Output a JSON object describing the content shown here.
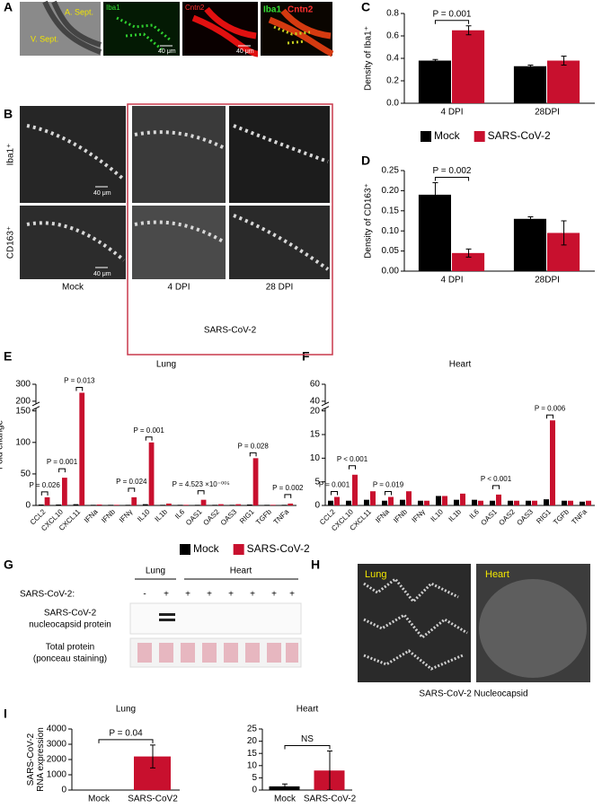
{
  "panel_labels": [
    "A",
    "B",
    "C",
    "D",
    "E",
    "F",
    "G",
    "H",
    "I"
  ],
  "panel_a": {
    "annotations": [
      "A. Sept.",
      "V. Sept."
    ],
    "channels": [
      "Iba1",
      "Cntn2"
    ],
    "scale_bars": [
      "40 μm",
      "40 μm"
    ]
  },
  "panel_b": {
    "rows": [
      "Iba1⁺",
      "CD163⁺"
    ],
    "scale_bars": [
      "40 μm",
      "40 μm"
    ],
    "columns": [
      "Mock",
      "4 DPI",
      "28 DPI"
    ],
    "group": "SARS-CoV-2"
  },
  "panel_g": {
    "tissues": [
      "Lung",
      "Heart"
    ],
    "row_header": "SARS-CoV-2:",
    "lanes": [
      "-",
      "+",
      "+",
      "+",
      "+",
      "+",
      "+",
      "+"
    ],
    "rows": [
      [
        "SARS-CoV-2",
        "nucleocapsid protein"
      ],
      [
        "Total protein",
        "(ponceau staining)"
      ]
    ]
  },
  "panel_h": {
    "images": [
      "Lung",
      "Heart"
    ],
    "caption": "SARS-CoV-2 Nucleocapsid"
  },
  "chart_data": [
    {
      "type": "bar",
      "ylabel": "Density of Iba1⁺",
      "categories": [
        "4 DPI",
        "28DPI"
      ],
      "series": [
        {
          "color": "#000000",
          "values": [
            0.38,
            0.33
          ],
          "errors": [
            0.01,
            0.01
          ]
        },
        {
          "color": "#c8102e",
          "values": [
            0.65,
            0.38
          ],
          "errors": [
            0.04,
            0.04
          ]
        }
      ],
      "ylim": [
        0,
        0.8
      ],
      "yticks": [
        {
          "value": 0,
          "label": "0.0"
        },
        0.2,
        0.4,
        0.6,
        0.8
      ],
      "annotations": [
        {
          "text": "P = 0.001",
          "category": "4 DPI"
        }
      ]
    },
    {
      "type": "bar",
      "ylabel": "Density of CD163⁺",
      "categories": [
        "4 DPI",
        "28DPI"
      ],
      "series": [
        {
          "name": "Mock",
          "color": "#000000",
          "values": [
            0.19,
            0.13
          ],
          "errors": [
            0.03,
            0.005
          ]
        },
        {
          "name": "SARS-CoV-2",
          "color": "#c8102e",
          "values": [
            0.045,
            0.095
          ],
          "errors": [
            0.01,
            0.03
          ]
        }
      ],
      "ylim": [
        0,
        0.25
      ],
      "yticks": [
        {
          "value": 0,
          "label": "0.00"
        },
        0.05,
        {
          "value": 0.1,
          "label": "0.10"
        },
        0.15,
        {
          "value": 0.2,
          "label": "0.20"
        },
        0.25
      ],
      "annotations": [
        {
          "text": "P = 0.002",
          "category": "4 DPI"
        }
      ]
    },
    {
      "type": "bar",
      "title": "Lung",
      "ylabel": "Fold change",
      "categories": [
        "CCL2",
        "CXCL10",
        "CXCL11",
        "IFNa",
        "IFNb",
        "IFNγ",
        "IL10",
        "IL1b",
        "IL6",
        "OAS1",
        "OAS2",
        "OAS3",
        "RIG1",
        "TGFb",
        "TNFa"
      ],
      "series": [
        {
          "name": "Mock",
          "color": "#000000",
          "values": [
            1.5,
            1.5,
            2,
            1,
            1,
            1,
            2,
            1,
            1,
            1,
            1,
            1,
            1.5,
            1,
            1
          ]
        },
        {
          "name": "SARS-CoV-2",
          "color": "#c8102e",
          "values": [
            13,
            44,
            250,
            1.5,
            1,
            13,
            100,
            3,
            1,
            9,
            2,
            2,
            75,
            1,
            3
          ]
        }
      ],
      "ylim": [
        0,
        300
      ],
      "ybreak": [
        150,
        200
      ],
      "yticks": [
        0,
        50,
        100,
        150,
        200,
        300
      ],
      "annotations": [
        {
          "text": "P = 0.026",
          "category": "CCL2"
        },
        {
          "text": "P = 0.001",
          "category": "CXCL10"
        },
        {
          "text": "P = 0.013",
          "category": "CXCL11"
        },
        {
          "text": "P = 0.024",
          "category": "IFNγ"
        },
        {
          "text": "P = 0.001",
          "category": "IL10"
        },
        {
          "text": "P = 4.523 ×10⁻⁰⁰⁵",
          "category": "OAS1"
        },
        {
          "text": "P = 0.028",
          "category": "RIG1"
        },
        {
          "text": "P = 0.002",
          "category": "TNFa"
        }
      ]
    },
    {
      "type": "bar",
      "title": "Heart",
      "categories": [
        "CCL2",
        "CXCL10",
        "CXCL11",
        "IFNa",
        "IFNb",
        "IFNγ",
        "IL10",
        "IL1b",
        "IL6",
        "OAS1",
        "OAS2",
        "OAS3",
        "RIG1",
        "TGFb",
        "TNFa"
      ],
      "series": [
        {
          "color": "#000000",
          "values": [
            1,
            1,
            1.2,
            1,
            1.2,
            1,
            2,
            1.2,
            1.2,
            1,
            1,
            1,
            1.3,
            1,
            0.8
          ]
        },
        {
          "color": "#c8102e",
          "values": [
            1.8,
            6.5,
            3,
            1.8,
            3,
            1,
            2,
            2.5,
            1,
            2.3,
            1,
            1,
            18,
            1,
            1
          ]
        }
      ],
      "ylim": [
        0,
        60
      ],
      "ybreak": [
        20,
        40
      ],
      "yticks": [
        0,
        5,
        10,
        15,
        20,
        40,
        60
      ],
      "annotations": [
        {
          "text": "P = 0.001",
          "category": "CCL2"
        },
        {
          "text": "P < 0.001",
          "category": "CXCL10"
        },
        {
          "text": "P = 0.019",
          "category": "IFNa"
        },
        {
          "text": "P < 0.001",
          "category": "OAS1"
        },
        {
          "text": "P = 0.006",
          "category": "RIG1"
        }
      ]
    },
    {
      "type": "bar",
      "title": "Lung",
      "ylabel": [
        "SARS-CoV-2",
        "RNA expression"
      ],
      "categories": [
        "Mock",
        "SARS-CoV2"
      ],
      "values": [
        0,
        2200
      ],
      "errors": [
        0,
        750
      ],
      "colors": [
        "#000000",
        "#c8102e"
      ],
      "ylim": [
        0,
        4000
      ],
      "yticks": [
        0,
        1000,
        2000,
        3000,
        4000
      ],
      "annotations": [
        {
          "text": "P = 0.04"
        }
      ]
    },
    {
      "type": "bar",
      "title": "Heart",
      "categories": [
        "Mock",
        "SARS-CoV-2"
      ],
      "values": [
        1.5,
        8
      ],
      "errors": [
        1,
        8
      ],
      "colors": [
        "#000000",
        "#c8102e"
      ],
      "ylim": [
        0,
        25
      ],
      "yticks": [
        0,
        5,
        10,
        15,
        20,
        25
      ],
      "annotations": [
        {
          "text": "NS"
        }
      ]
    }
  ]
}
